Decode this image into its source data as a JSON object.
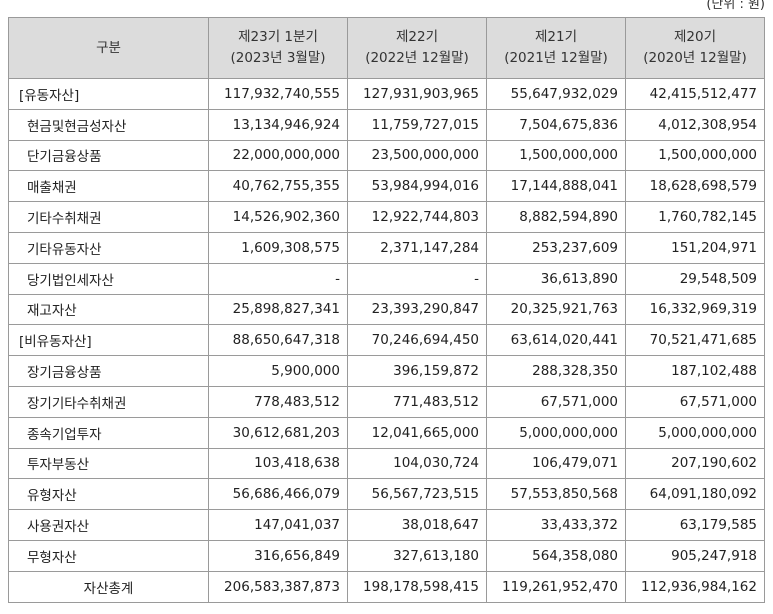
{
  "unit_label": "(단위 : 원)",
  "header": {
    "label": "구분",
    "columns": [
      {
        "period": "제23기 1분기",
        "date": "(2023년 3월말)"
      },
      {
        "period": "제22기",
        "date": "(2022년 12월말)"
      },
      {
        "period": "제21기",
        "date": "(2021년 12월말)"
      },
      {
        "period": "제20기",
        "date": "(2020년 12월말)"
      }
    ]
  },
  "rows": [
    {
      "label": "[유동자산]",
      "values": [
        "117,932,740,555",
        "127,931,903,965",
        "55,647,932,029",
        "42,415,512,477"
      ]
    },
    {
      "label": "현금및현금성자산",
      "values": [
        "13,134,946,924",
        "11,759,727,015",
        "7,504,675,836",
        "4,012,308,954"
      ]
    },
    {
      "label": "단기금융상품",
      "values": [
        "22,000,000,000",
        "23,500,000,000",
        "1,500,000,000",
        "1,500,000,000"
      ]
    },
    {
      "label": "매출채권",
      "values": [
        "40,762,755,355",
        "53,984,994,016",
        "17,144,888,041",
        "18,628,698,579"
      ]
    },
    {
      "label": "기타수취채권",
      "values": [
        "14,526,902,360",
        "12,922,744,803",
        "8,882,594,890",
        "1,760,782,145"
      ]
    },
    {
      "label": "기타유동자산",
      "values": [
        "1,609,308,575",
        "2,371,147,284",
        "253,237,609",
        "151,204,971"
      ]
    },
    {
      "label": "당기법인세자산",
      "values": [
        "-",
        "-",
        "36,613,890",
        "29,548,509"
      ]
    },
    {
      "label": "재고자산",
      "values": [
        "25,898,827,341",
        "23,393,290,847",
        "20,325,921,763",
        "16,332,969,319"
      ]
    },
    {
      "label": "[비유동자산]",
      "values": [
        "88,650,647,318",
        "70,246,694,450",
        "63,614,020,441",
        "70,521,471,685"
      ]
    },
    {
      "label": "장기금융상품",
      "values": [
        "5,900,000",
        "396,159,872",
        "288,328,350",
        "187,102,488"
      ]
    },
    {
      "label": "장기기타수취채권",
      "values": [
        "778,483,512",
        "771,483,512",
        "67,571,000",
        "67,571,000"
      ]
    },
    {
      "label": "종속기업투자",
      "values": [
        "30,612,681,203",
        "12,041,665,000",
        "5,000,000,000",
        "5,000,000,000"
      ]
    },
    {
      "label": "투자부동산",
      "values": [
        "103,418,638",
        "104,030,724",
        "106,479,071",
        "207,190,602"
      ]
    },
    {
      "label": "유형자산",
      "values": [
        "56,686,466,079",
        "56,567,723,515",
        "57,553,850,568",
        "64,091,180,092"
      ]
    },
    {
      "label": "사용권자산",
      "values": [
        "147,041,037",
        "38,018,647",
        "33,433,372",
        "63,179,585"
      ]
    },
    {
      "label": "무형자산",
      "values": [
        "316,656,849",
        "327,613,180",
        "564,358,080",
        "905,247,918"
      ]
    },
    {
      "label": "자산총계",
      "values": [
        "206,583,387,873",
        "198,178,598,415",
        "119,261,952,470",
        "112,936,984,162"
      ]
    }
  ]
}
